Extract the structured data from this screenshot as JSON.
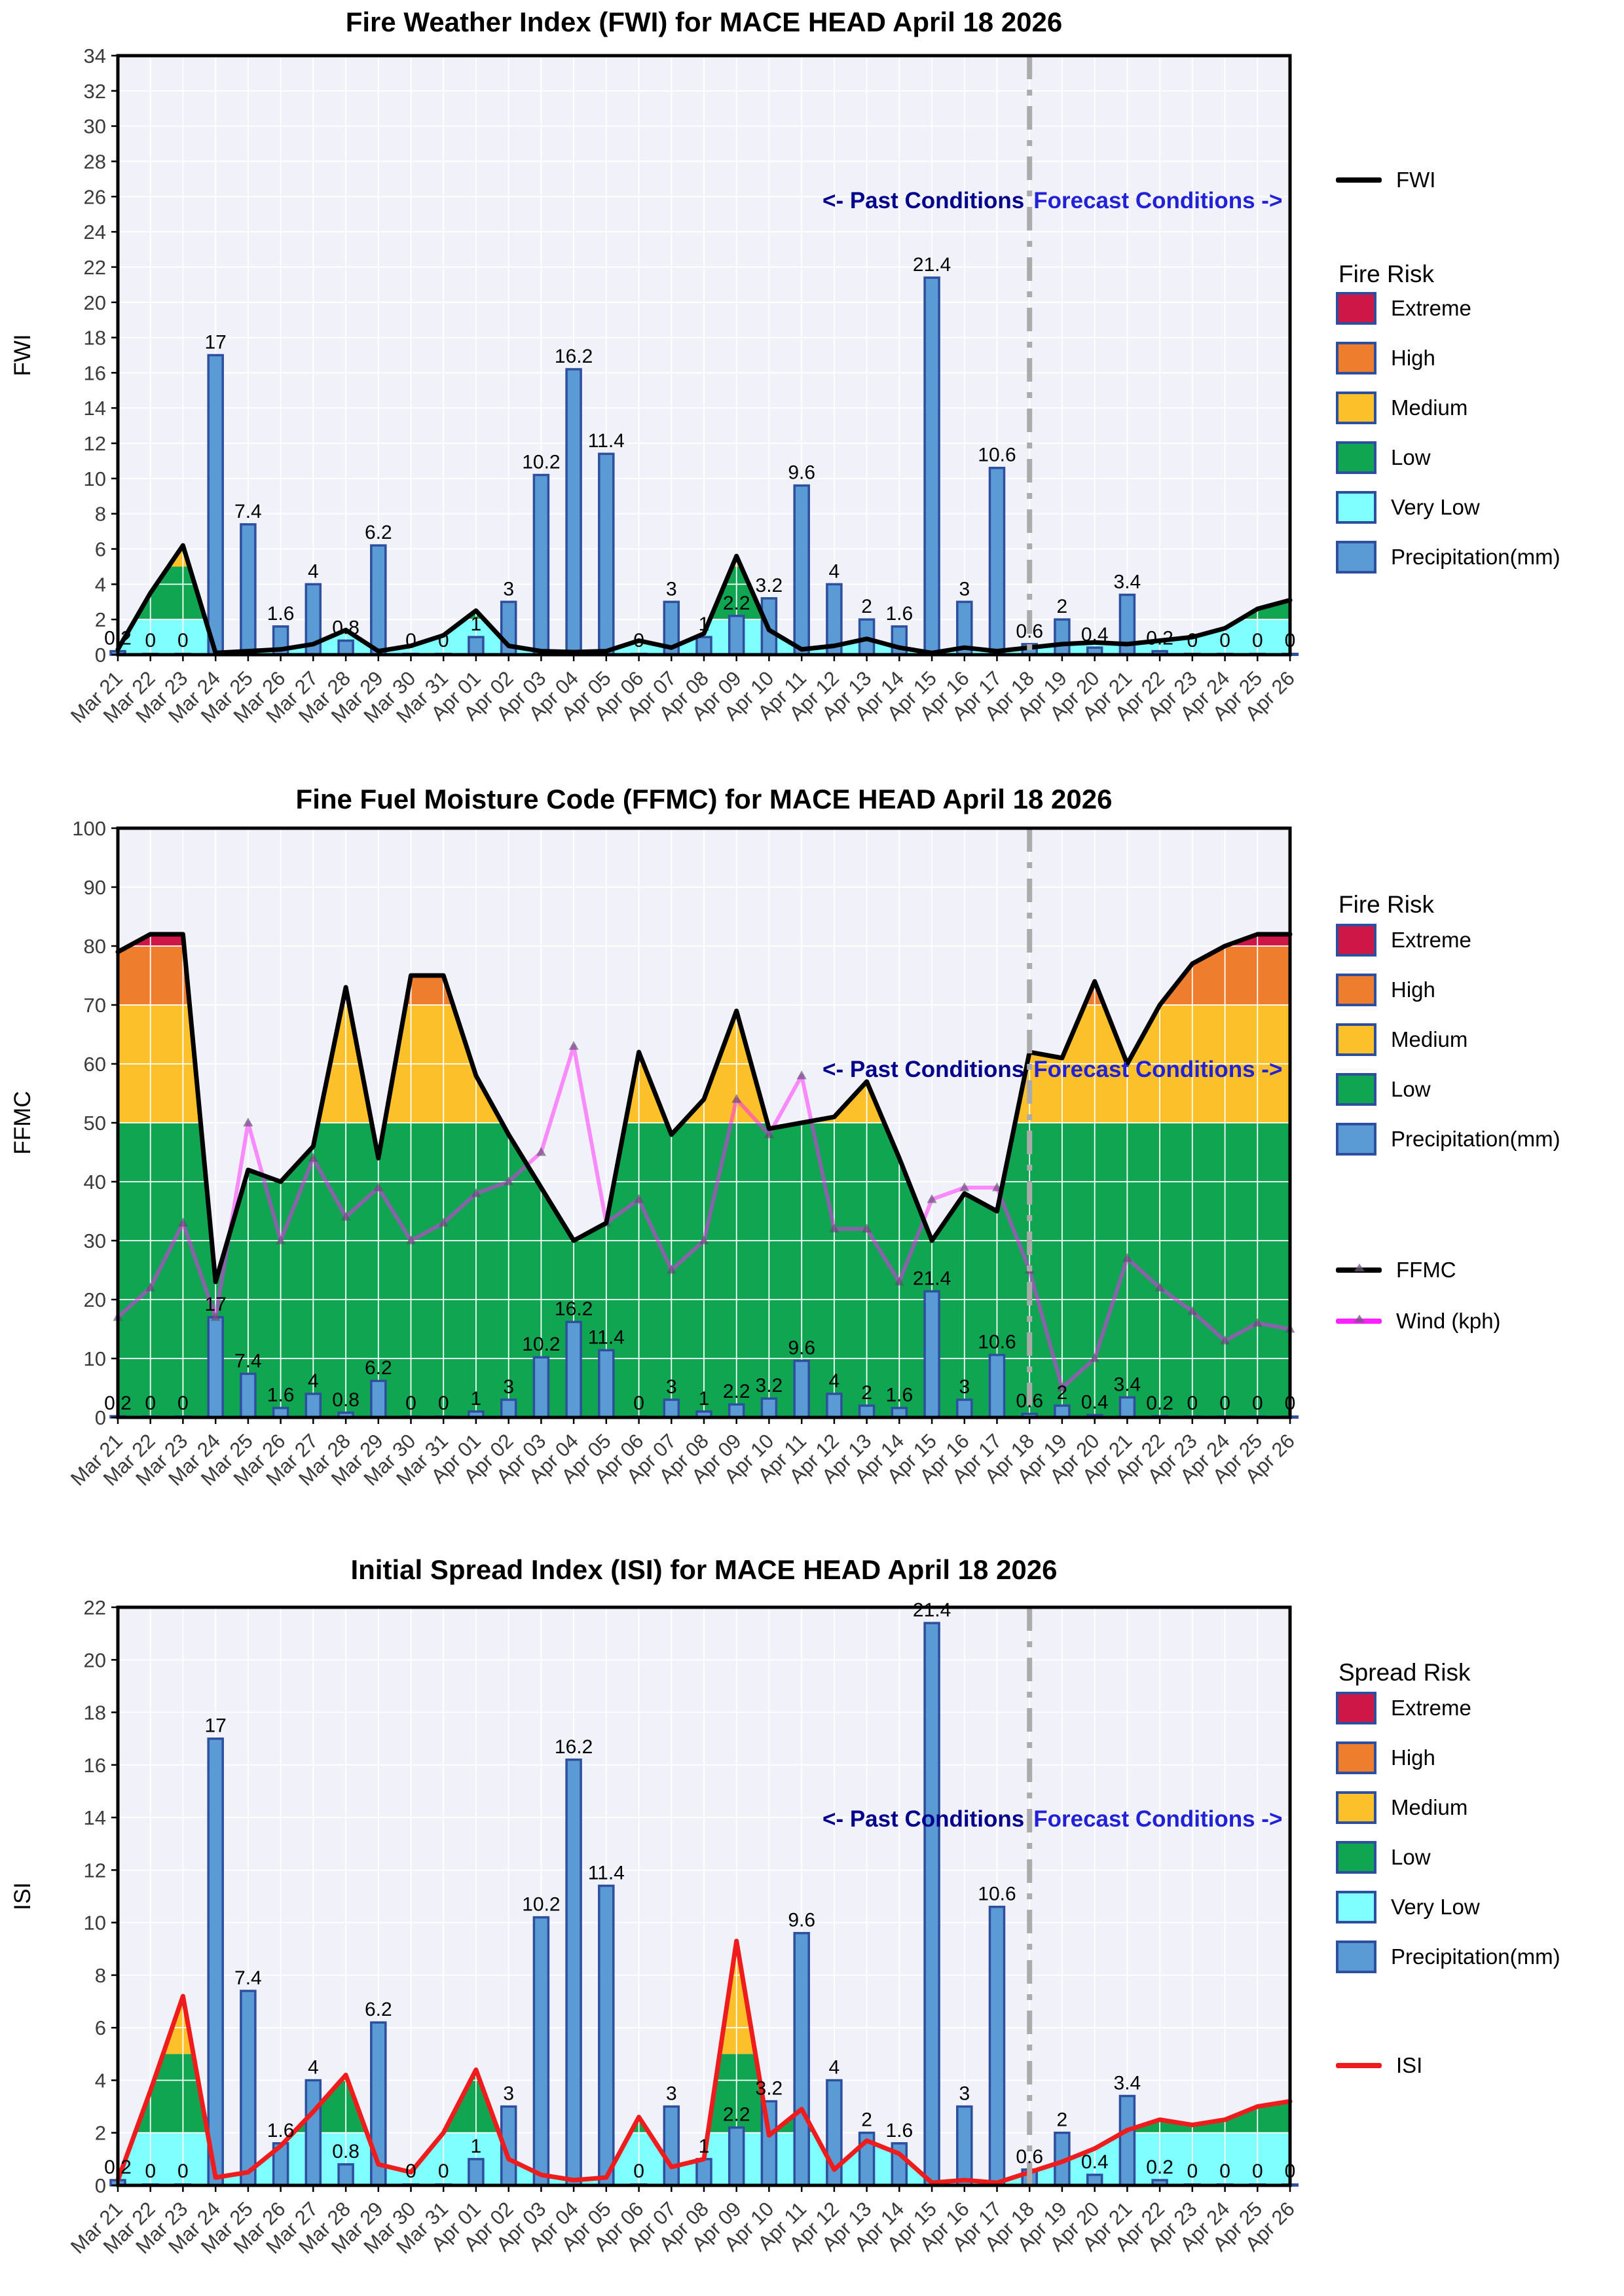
{
  "colors": {
    "extreme": "#CE1747",
    "high": "#EE7D2E",
    "medium": "#FCC12A",
    "low": "#0FA551",
    "verylow": "#7FFFFF",
    "precip_fill": "#5B9BD5",
    "precip_edge": "#2E4E9E",
    "fwi_line": "#000000",
    "ffmc_line": "#000000",
    "isi_line": "#EE1C1C",
    "wind_line": "#FF22FF",
    "annotation_past": "#00008B",
    "annotation_forecast": "#2121D6",
    "divider": "#ABABAB",
    "plot_bg": "#F1F2F9",
    "grid": "#FFFFFF",
    "tick_text": "#3B3B3B",
    "bar_label": "#000000"
  },
  "annotations": {
    "past": "<- Past Conditions",
    "forecast": "Forecast Conditions ->"
  },
  "chart_data": {
    "categories": [
      "Mar 21",
      "Mar 22",
      "Mar 23",
      "Mar 24",
      "Mar 25",
      "Mar 26",
      "Mar 27",
      "Mar 28",
      "Mar 29",
      "Mar 30",
      "Mar 31",
      "Apr 01",
      "Apr 02",
      "Apr 03",
      "Apr 04",
      "Apr 05",
      "Apr 06",
      "Apr 07",
      "Apr 08",
      "Apr 09",
      "Apr 10",
      "Apr 11",
      "Apr 12",
      "Apr 13",
      "Apr 14",
      "Apr 15",
      "Apr 16",
      "Apr 17",
      "Apr 18",
      "Apr 19",
      "Apr 20",
      "Apr 21",
      "Apr 22",
      "Apr 23",
      "Apr 24",
      "Apr 25",
      "Apr 26"
    ],
    "precipitation_mm": [
      0.2,
      0,
      0,
      17,
      7.4,
      1.6,
      4,
      0.8,
      6.2,
      0,
      0,
      1,
      3,
      10.2,
      16.2,
      11.4,
      0,
      3,
      1,
      2.2,
      3.2,
      9.6,
      4,
      2,
      1.6,
      21.4,
      3,
      10.6,
      0.6,
      2,
      0.4,
      3.4,
      0.2,
      0,
      0,
      0,
      0
    ],
    "precipitation_label": "Precipitation(mm)",
    "divider_index": 28,
    "divider_date": "Apr 18",
    "charts": [
      {
        "type": "line",
        "title": "Fire Weather Index (FWI) for MACE HEAD April 18 2026",
        "ylabel": "FWI",
        "ylim": [
          0,
          34
        ],
        "ytick_step": 2,
        "risk_legend_title": "Fire Risk",
        "bands": [
          {
            "label": "Very Low",
            "from": 0,
            "to": 2,
            "color_key": "verylow"
          },
          {
            "label": "Low",
            "from": 2,
            "to": 5,
            "color_key": "low"
          },
          {
            "label": "Medium",
            "from": 5,
            "to": 11,
            "color_key": "medium"
          },
          {
            "label": "High",
            "from": 11,
            "to": 21,
            "color_key": "high"
          },
          {
            "label": "Extreme",
            "from": 21,
            "to": 34,
            "color_key": "extreme"
          }
        ],
        "series": [
          {
            "name": "FWI",
            "color_key": "fwi_line",
            "marker": false,
            "values": [
              0.3,
              3.5,
              6.2,
              0.1,
              0.2,
              0.3,
              0.6,
              1.4,
              0.2,
              0.5,
              1.1,
              2.5,
              0.5,
              0.2,
              0.15,
              0.2,
              0.8,
              0.4,
              1.2,
              5.6,
              1.4,
              0.3,
              0.5,
              0.9,
              0.4,
              0.1,
              0.4,
              0.2,
              0.4,
              0.6,
              0.7,
              0.6,
              0.8,
              1.0,
              1.5,
              2.6,
              3.1
            ]
          }
        ],
        "legend_line_items_top": [
          {
            "label": "FWI",
            "color_key": "fwi_line",
            "marker": false
          }
        ],
        "legend_line_items_bottom": []
      },
      {
        "type": "line",
        "title": "Fine Fuel Moisture Code (FFMC) for MACE HEAD April 18 2026",
        "ylabel": "FFMC",
        "ylim": [
          0,
          100
        ],
        "ytick_step": 10,
        "risk_legend_title": "Fire Risk",
        "bands": [
          {
            "label": "Low",
            "from": 0,
            "to": 50,
            "color_key": "low"
          },
          {
            "label": "Medium",
            "from": 50,
            "to": 70,
            "color_key": "medium"
          },
          {
            "label": "High",
            "from": 70,
            "to": 80,
            "color_key": "high"
          },
          {
            "label": "Extreme",
            "from": 80,
            "to": 100,
            "color_key": "extreme"
          }
        ],
        "series": [
          {
            "name": "FFMC",
            "color_key": "ffmc_line",
            "marker": true,
            "values": [
              79,
              82,
              82,
              23,
              42,
              40,
              46,
              73,
              44,
              75,
              75,
              58,
              48,
              39,
              30,
              33,
              62,
              48,
              54,
              69,
              49,
              50,
              51,
              57,
              44,
              30,
              38,
              35,
              62,
              61,
              74,
              60,
              70,
              77,
              80,
              82,
              82
            ]
          },
          {
            "name": "Wind (kph)",
            "color_key": "wind_line",
            "marker": true,
            "values": [
              17,
              22,
              33,
              17,
              50,
              30,
              44,
              34,
              39,
              30,
              33,
              38,
              40,
              45,
              63,
              33,
              37,
              25,
              30,
              54,
              48,
              58,
              32,
              32,
              23,
              37,
              39,
              39,
              25,
              5,
              10,
              27,
              22,
              18,
              13,
              16,
              15
            ]
          }
        ],
        "legend_line_items_top": [],
        "legend_line_items_bottom": [
          {
            "label": "FFMC",
            "color_key": "ffmc_line",
            "marker": true
          },
          {
            "label": "Wind (kph)",
            "color_key": "wind_line",
            "marker": true
          }
        ]
      },
      {
        "type": "line",
        "title": "Initial Spread Index (ISI) for MACE HEAD April 18 2026",
        "ylabel": "ISI",
        "ylim": [
          0,
          22
        ],
        "ytick_step": 2,
        "risk_legend_title": "Spread Risk",
        "bands": [
          {
            "label": "Very Low",
            "from": 0,
            "to": 2,
            "color_key": "verylow"
          },
          {
            "label": "Low",
            "from": 2,
            "to": 5,
            "color_key": "low"
          },
          {
            "label": "Medium",
            "from": 5,
            "to": 10,
            "color_key": "medium"
          },
          {
            "label": "High",
            "from": 10,
            "to": 15,
            "color_key": "high"
          },
          {
            "label": "Extreme",
            "from": 15,
            "to": 22,
            "color_key": "extreme"
          }
        ],
        "series": [
          {
            "name": "ISI",
            "color_key": "isi_line",
            "marker": false,
            "values": [
              0.2,
              3.6,
              7.2,
              0.3,
              0.5,
              1.5,
              2.8,
              4.2,
              0.8,
              0.5,
              2.0,
              4.4,
              1.0,
              0.4,
              0.2,
              0.3,
              2.6,
              0.7,
              1.0,
              9.3,
              1.9,
              2.9,
              0.6,
              1.7,
              1.2,
              0.1,
              0.2,
              0.1,
              0.5,
              0.9,
              1.4,
              2.1,
              2.5,
              2.3,
              2.5,
              3.0,
              3.2
            ]
          }
        ],
        "legend_line_items_top": [],
        "legend_line_items_bottom": [
          {
            "label": "ISI",
            "color_key": "isi_line",
            "marker": false
          }
        ]
      }
    ]
  }
}
